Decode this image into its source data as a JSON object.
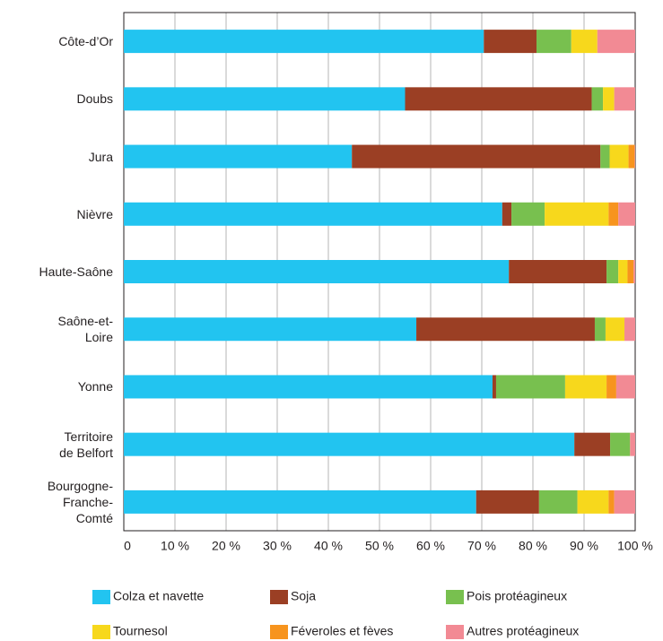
{
  "chart_data": {
    "type": "stacked-bar-horizontal",
    "categories": [
      "Côte-d’Or",
      "Doubs",
      "Jura",
      "Nièvre",
      "Haute-Saône",
      "Saône-et-\nLoire",
      "Yonne",
      "Territoire\nde Belfort",
      "Bourgogne-\nFranche-\nComté"
    ],
    "series": [
      {
        "name": "Colza et navette",
        "color": "#22c4f0",
        "values": [
          70.4,
          55,
          44.6,
          74.0,
          75.3,
          57.2,
          72.1,
          88.1,
          68.9
        ]
      },
      {
        "name": "Soja",
        "color": "#9b3f24",
        "values": [
          10.3,
          36.5,
          48.6,
          1.8,
          19.1,
          34.9,
          0.7,
          7.0,
          12.3
        ]
      },
      {
        "name": "Pois protéagineux",
        "color": "#78c04f",
        "values": [
          6.8,
          2.2,
          1.8,
          6.5,
          2.3,
          2.1,
          13.5,
          3.9,
          7.5
        ]
      },
      {
        "name": "Tournesol",
        "color": "#f7d81c",
        "values": [
          5.1,
          2.2,
          3.7,
          12.5,
          1.8,
          3.7,
          8.1,
          0,
          6.1
        ]
      },
      {
        "name": "Féveroles et fèves",
        "color": "#f7941e",
        "values": [
          0,
          0,
          1.2,
          1.9,
          1.2,
          0,
          1.9,
          0,
          1.1
        ]
      },
      {
        "name": "Autres protéagineux",
        "color": "#f28a94",
        "values": [
          7.4,
          4.1,
          0.1,
          3.3,
          0.3,
          2.1,
          3.7,
          1.0,
          4.1
        ]
      }
    ],
    "xlim": [
      0,
      100
    ],
    "xticks": [
      0,
      {
        "value": 10,
        "label": "10 %"
      },
      {
        "value": 20,
        "label": "20 %"
      },
      {
        "value": 30,
        "label": "30 %"
      },
      {
        "value": 40,
        "label": "40 %"
      },
      {
        "value": 50,
        "label": "50 %"
      },
      {
        "value": 60,
        "label": "60 %"
      },
      {
        "value": 70,
        "label": "70 %"
      },
      {
        "value": 80,
        "label": "80 %"
      },
      {
        "value": 90,
        "label": "90 %"
      },
      {
        "value": 100,
        "label": "100 %"
      }
    ],
    "grid": true
  }
}
